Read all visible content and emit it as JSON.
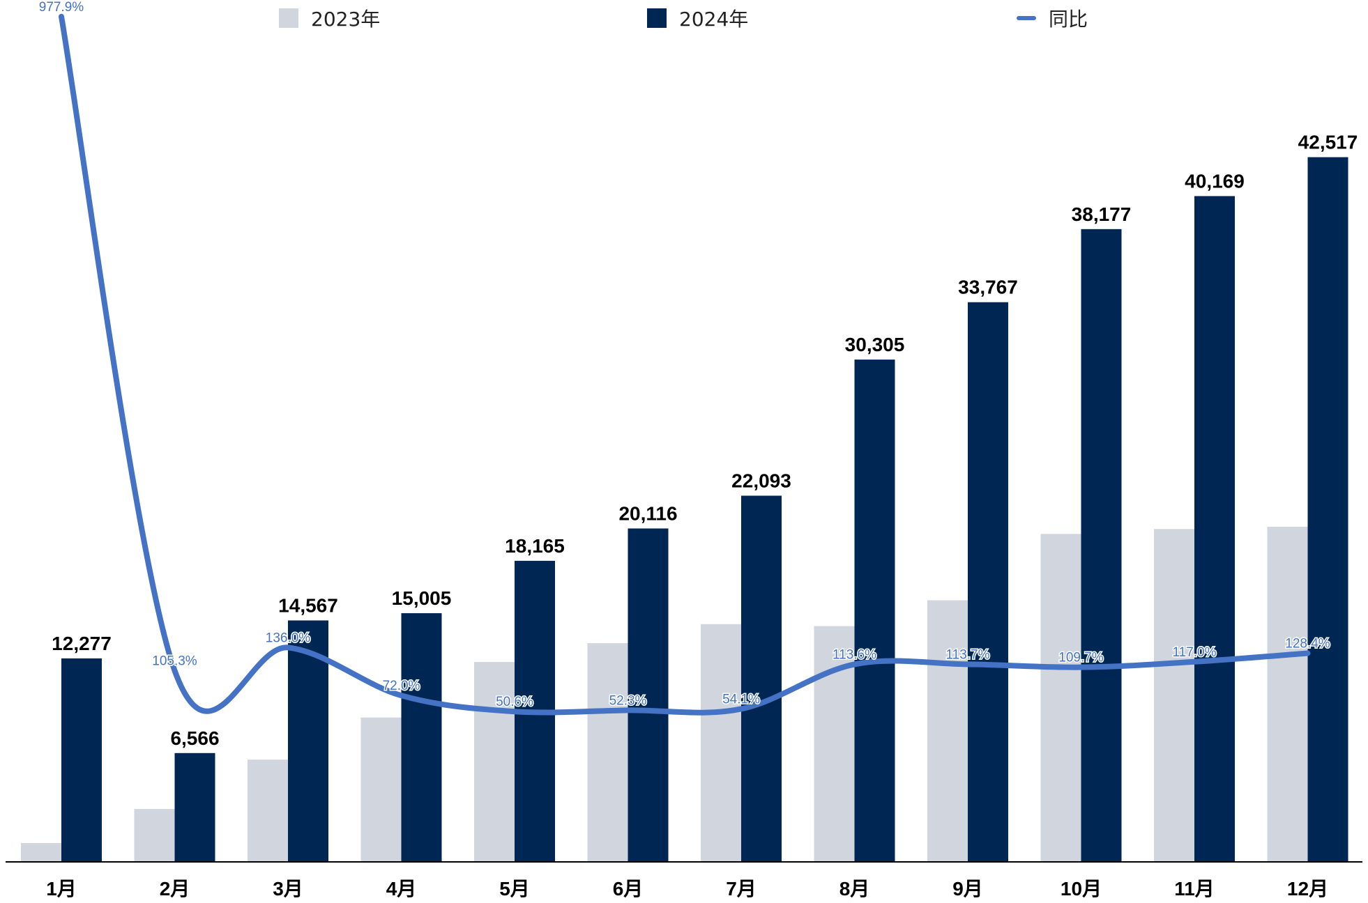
{
  "legend": {
    "series_2023": "2023年",
    "series_2024": "2024年",
    "series_yoy": "同比"
  },
  "colors": {
    "series_2023": "#d1d6de",
    "series_2024": "#002754",
    "series_yoy": "#4472c4",
    "axis": "#000000",
    "bar_label": "#000000"
  },
  "chart_data": {
    "type": "bar",
    "categories": [
      "1月",
      "2月",
      "3月",
      "4月",
      "5月",
      "6月",
      "7月",
      "8月",
      "9月",
      "10月",
      "11月",
      "12月"
    ],
    "series": [
      {
        "name": "2023年",
        "type": "bar",
        "values": [
          1138,
          3193,
          6171,
          8711,
          12061,
          13198,
          14344,
          14225,
          15786,
          19788,
          20083,
          20219
        ]
      },
      {
        "name": "2024年",
        "type": "bar",
        "values": [
          12277,
          6566,
          14567,
          15005,
          18165,
          20116,
          22093,
          30305,
          33767,
          38177,
          40169,
          42517
        ]
      },
      {
        "name": "同比",
        "type": "line",
        "axis": "secondary",
        "values": [
          977.9,
          105.3,
          136.0,
          72.0,
          50.6,
          52.3,
          54.1,
          113.6,
          113.7,
          109.7,
          117.0,
          128.4
        ]
      }
    ],
    "bar_data_labels": [
      "12,277",
      "6,566",
      "14,567",
      "15,005",
      "18,165",
      "20,116",
      "22,093",
      "30,305",
      "33,767",
      "38,177",
      "40,169",
      "42,517"
    ],
    "line_data_labels": [
      "977.9%",
      "105.3%",
      "136.0%",
      "72.0%",
      "50.6%",
      "52.3%",
      "54.1%",
      "113.6%",
      "113.7%",
      "109.7%",
      "117.0%",
      "128.4%"
    ],
    "ylim": [
      0,
      52000
    ],
    "y2lim": [
      -150,
      1000
    ],
    "grid": false,
    "legend_position": "top"
  }
}
